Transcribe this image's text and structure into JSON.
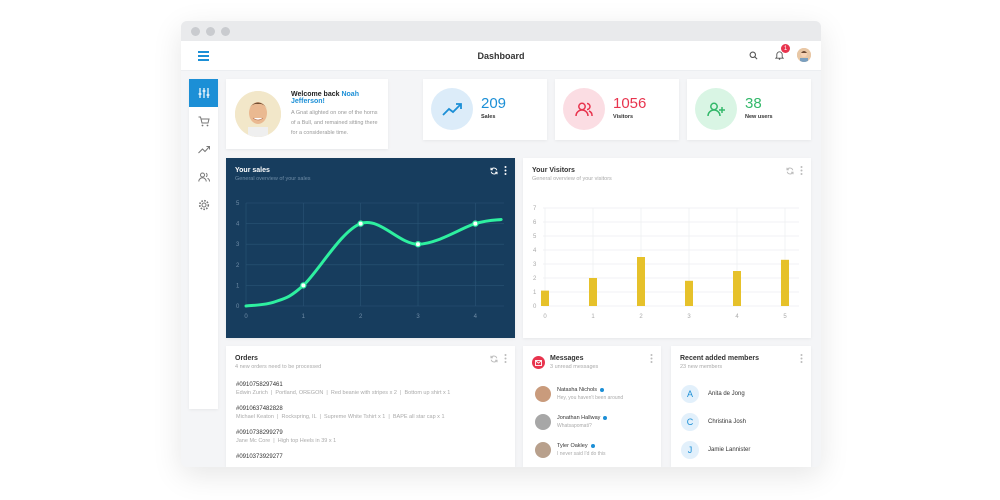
{
  "topbar": {
    "title": "Dashboard",
    "notifications_count": "1"
  },
  "welcome": {
    "prefix": "Welcome back",
    "name": "Noah Jefferson!",
    "text": "A Gnat alighted on one of the horns of a Bull, and remained sitting there for a considerable time."
  },
  "stats": [
    {
      "value": "209",
      "label": "Sales",
      "color": "#1c8fd6",
      "bg": "#dcecf9",
      "icon": "trend-up-icon"
    },
    {
      "value": "1056",
      "label": "Visitors",
      "color": "#e8344e",
      "bg": "#fbdde3",
      "icon": "users-icon"
    },
    {
      "value": "38",
      "label": "New users",
      "color": "#33b86a",
      "bg": "#d9f5e4",
      "icon": "user-plus-icon"
    }
  ],
  "sales_card": {
    "title": "Your sales",
    "subtitle": "General overview of your sales"
  },
  "visitors_card": {
    "title": "Your Visitors",
    "subtitle": "General overview of your visitors"
  },
  "chart_data": [
    {
      "type": "line",
      "title": "Your sales",
      "x": [
        0,
        1,
        2,
        3,
        4
      ],
      "xlim": [
        0,
        4.5
      ],
      "ylim": [
        0,
        5
      ],
      "yticks": [
        0,
        1,
        2,
        3,
        4,
        5
      ],
      "series": [
        {
          "values": [
            0,
            1,
            4,
            3,
            4
          ]
        }
      ],
      "curve_points": [
        [
          0,
          0
        ],
        [
          0.5,
          0.2
        ],
        [
          1,
          1
        ],
        [
          2,
          4
        ],
        [
          3,
          3
        ],
        [
          4,
          4
        ],
        [
          4.45,
          4.2
        ]
      ],
      "grid": true,
      "color": "#2ef0a0",
      "background": "#173d5e"
    },
    {
      "type": "bar",
      "title": "Your Visitors",
      "categories": [
        "0",
        "1",
        "2",
        "3",
        "4",
        "5"
      ],
      "values": [
        1.1,
        2.0,
        3.5,
        1.8,
        2.5,
        3.3
      ],
      "ylim": [
        0,
        7
      ],
      "yticks": [
        0,
        1,
        2,
        3,
        4,
        5,
        6,
        7
      ],
      "grid": true,
      "color": "#e6c12a"
    }
  ],
  "orders": {
    "title": "Orders",
    "subtitle": "4 new orders need to be processed",
    "items": [
      {
        "id": "#0910758297461",
        "customer": "Edwin Zurich",
        "location": "Portland, OREGON",
        "product": "Red beanie with stripes x 2",
        "extra": "Bottom up shirt x 1"
      },
      {
        "id": "#0910637482828",
        "customer": "Michael Keaton",
        "location": "Rockspring, IL",
        "product": "Supreme White Tshirt x 1",
        "extra": "BAPE all star cap x 1"
      },
      {
        "id": "#0910738299279",
        "customer": "Jane Mc Core",
        "location": "",
        "product": "High top Heels in 39 x 1",
        "extra": ""
      },
      {
        "id": "#0910373929277",
        "customer": "",
        "location": "",
        "product": "",
        "extra": ""
      }
    ]
  },
  "messages": {
    "title": "Messages",
    "subtitle": "3 unread messages",
    "items": [
      {
        "name": "Natasha Nichols",
        "text": "Hey, you haven't been around"
      },
      {
        "name": "Jonathan Hallway",
        "text": "Whatsapomati?"
      },
      {
        "name": "Tyler Oakley",
        "text": "I never said I'd do this"
      }
    ]
  },
  "members": {
    "title": "Recent added members",
    "subtitle": "23 new members",
    "items": [
      {
        "initial": "A",
        "name": "Anita de Jong"
      },
      {
        "initial": "C",
        "name": "Christina Josh"
      },
      {
        "initial": "J",
        "name": "Jamie Lannister"
      }
    ]
  }
}
